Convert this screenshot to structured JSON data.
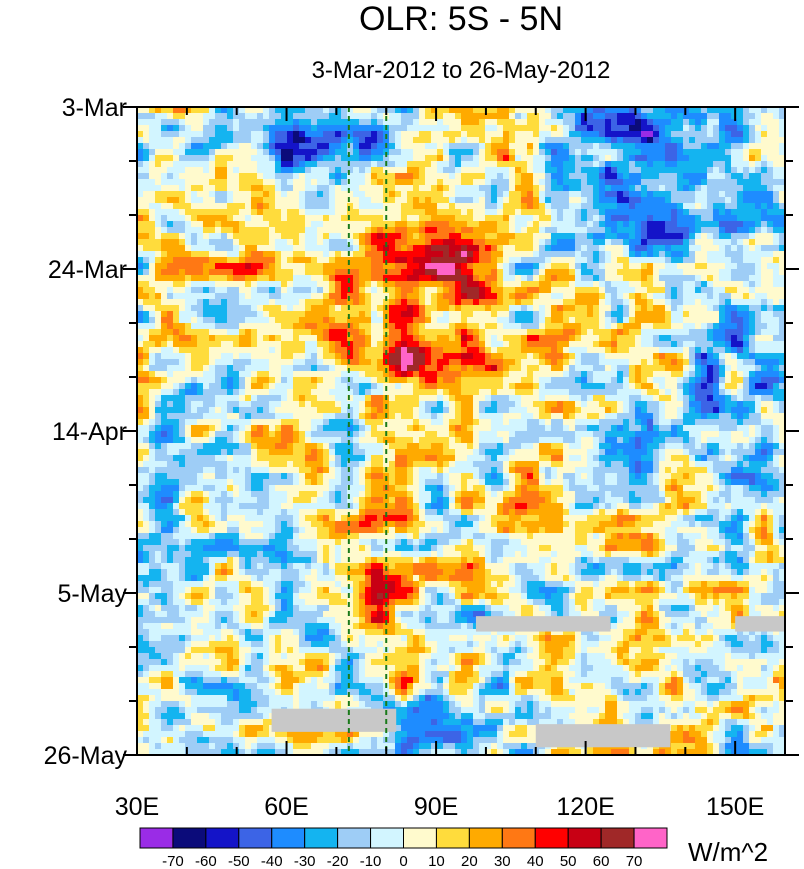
{
  "chart_data": {
    "type": "heatmap",
    "title": "OLR: 5S - 5N",
    "subtitle": "3-Mar-2012 to 26-May-2012",
    "x_axis": {
      "range": [
        30,
        160
      ],
      "ticks": [
        {
          "value": 30,
          "label": "30E"
        },
        {
          "value": 60,
          "label": "60E"
        },
        {
          "value": 90,
          "label": "90E"
        },
        {
          "value": 120,
          "label": "120E"
        },
        {
          "value": 150,
          "label": "150E"
        }
      ]
    },
    "y_axis": {
      "direction": "time increasing downward",
      "range": [
        "3-Mar-2012",
        "26-May-2012"
      ],
      "ticks": [
        {
          "value": "3-Mar-2012",
          "label": "3-Mar"
        },
        {
          "value": "24-Mar-2012",
          "label": "24-Mar"
        },
        {
          "value": "14-Apr-2012",
          "label": "14-Apr"
        },
        {
          "value": "5-May-2012",
          "label": "5-May"
        },
        {
          "value": "26-May-2012",
          "label": "26-May"
        }
      ]
    },
    "reference_lines": [
      {
        "longitude": 72.5,
        "style": "dashed",
        "color": "#1a7a1a"
      },
      {
        "longitude": 80,
        "style": "dashed",
        "color": "#1a7a1a"
      }
    ],
    "colorbar": {
      "units": "W/m^2",
      "levels": [
        "-70",
        "-60",
        "-50",
        "-40",
        "-30",
        "-20",
        "-10",
        "0",
        "10",
        "20",
        "30",
        "40",
        "50",
        "60",
        "70"
      ],
      "colors": [
        "#9a2ce6",
        "#0b0b7a",
        "#1414c8",
        "#3c64e6",
        "#1e8cff",
        "#14b4f0",
        "#9ecdf6",
        "#d2f5ff",
        "#fffacd",
        "#ffdc3c",
        "#ffaa00",
        "#ff7814",
        "#ff0000",
        "#c80014",
        "#a02828",
        "#ff64c8"
      ]
    },
    "missing_color": "#c8c8c8",
    "features": [
      {
        "kind": "anomaly",
        "value": -55,
        "lon": [
          50,
          85
        ],
        "date": [
          "5-Mar-2012",
          "11-Mar-2012"
        ]
      },
      {
        "kind": "anomaly",
        "value": -50,
        "lon": [
          120,
          145
        ],
        "date": [
          "3-Mar-2012",
          "20-Mar-2012"
        ]
      },
      {
        "kind": "anomaly",
        "value": 30,
        "lon": [
          60,
          100
        ],
        "date": [
          "16-Mar-2012",
          "9-Apr-2012"
        ]
      },
      {
        "kind": "anomaly",
        "value": 50,
        "lon": [
          90,
          100
        ],
        "date": [
          "19-Mar-2012",
          "27-Mar-2012"
        ]
      },
      {
        "kind": "anomaly",
        "value": 15,
        "lon": [
          34,
          56
        ],
        "date": [
          "13-Mar-2012",
          "27-Mar-2012"
        ]
      },
      {
        "kind": "anomaly",
        "value": 40,
        "lon": [
          78,
          92
        ],
        "date": [
          "2-Apr-2012",
          "8-Apr-2012"
        ]
      },
      {
        "kind": "anomaly",
        "value": 35,
        "lon": [
          65,
          85
        ],
        "date": [
          "28-Apr-2012",
          "10-May-2012"
        ]
      },
      {
        "kind": "anomaly",
        "value": 25,
        "lon": [
          100,
          112
        ],
        "date": [
          "22-Apr-2012",
          "30-Apr-2012"
        ]
      },
      {
        "kind": "anomaly",
        "value": -35,
        "lon": [
          80,
          100
        ],
        "date": [
          "19-May-2012",
          "26-May-2012"
        ]
      },
      {
        "kind": "anomaly",
        "value": -30,
        "lon": [
          140,
          160
        ],
        "date": [
          "18-Mar-2012",
          "16-Apr-2012"
        ]
      },
      {
        "kind": "anomaly",
        "value": 20,
        "lon": [
          115,
          135
        ],
        "date": [
          "29-Mar-2012",
          "7-Apr-2012"
        ]
      },
      {
        "kind": "missing",
        "lon": [
          98,
          125
        ],
        "date": [
          "8-May-2012",
          "9-May-2012"
        ]
      },
      {
        "kind": "missing",
        "lon": [
          110,
          137
        ],
        "date": [
          "22-May-2012",
          "24-May-2012"
        ]
      },
      {
        "kind": "missing",
        "lon": [
          57,
          82
        ],
        "date": [
          "20-May-2012",
          "22-May-2012"
        ]
      },
      {
        "kind": "missing",
        "lon": [
          150,
          160
        ],
        "date": [
          "8-May-2012",
          "9-May-2012"
        ]
      }
    ]
  }
}
